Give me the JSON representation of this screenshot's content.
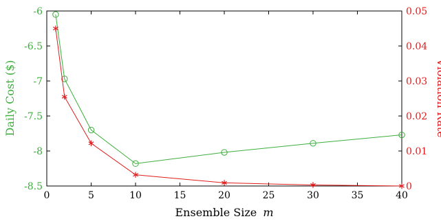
{
  "chart_data": {
    "type": "line",
    "title": "",
    "xlabel": "Ensemble Size",
    "xlabel_var": "m",
    "ylabel_left": "Daily Cost ($)",
    "ylabel_right": "Violation Rate",
    "xlim": [
      0,
      40
    ],
    "ylim_left": [
      -8.5,
      -6
    ],
    "ylim_right": [
      0,
      0.05
    ],
    "x_ticks": [
      0,
      5,
      10,
      15,
      20,
      25,
      30,
      35,
      40
    ],
    "y_left_ticks": [
      -8.5,
      -8,
      -7.5,
      -7,
      -6.5,
      -6
    ],
    "y_left_tick_labels": [
      "-8.5",
      "-8",
      "-7.5",
      "-7",
      "-6.5",
      "-6"
    ],
    "y_right_ticks": [
      0,
      0.01,
      0.02,
      0.03,
      0.04,
      0.05
    ],
    "y_right_tick_labels": [
      "0",
      "0.01",
      "0.02",
      "0.03",
      "0.04",
      "0.05"
    ],
    "grid": false,
    "colors": {
      "left": "#3cae3c",
      "right": "#e01b1b"
    },
    "series": [
      {
        "axis": "left",
        "marker": "circle",
        "color": "#3cae3c",
        "x": [
          1,
          2,
          5,
          10,
          20,
          30,
          40
        ],
        "y": [
          -6.05,
          -6.97,
          -7.7,
          -8.18,
          -8.02,
          -7.89,
          -7.77
        ]
      },
      {
        "axis": "right",
        "marker": "asterisk",
        "color": "#e01b1b",
        "x": [
          1,
          2,
          5,
          10,
          20,
          30,
          40
        ],
        "y": [
          0.045,
          0.0255,
          0.0122,
          0.0032,
          0.0009,
          0.0003,
          0.0
        ]
      }
    ]
  }
}
